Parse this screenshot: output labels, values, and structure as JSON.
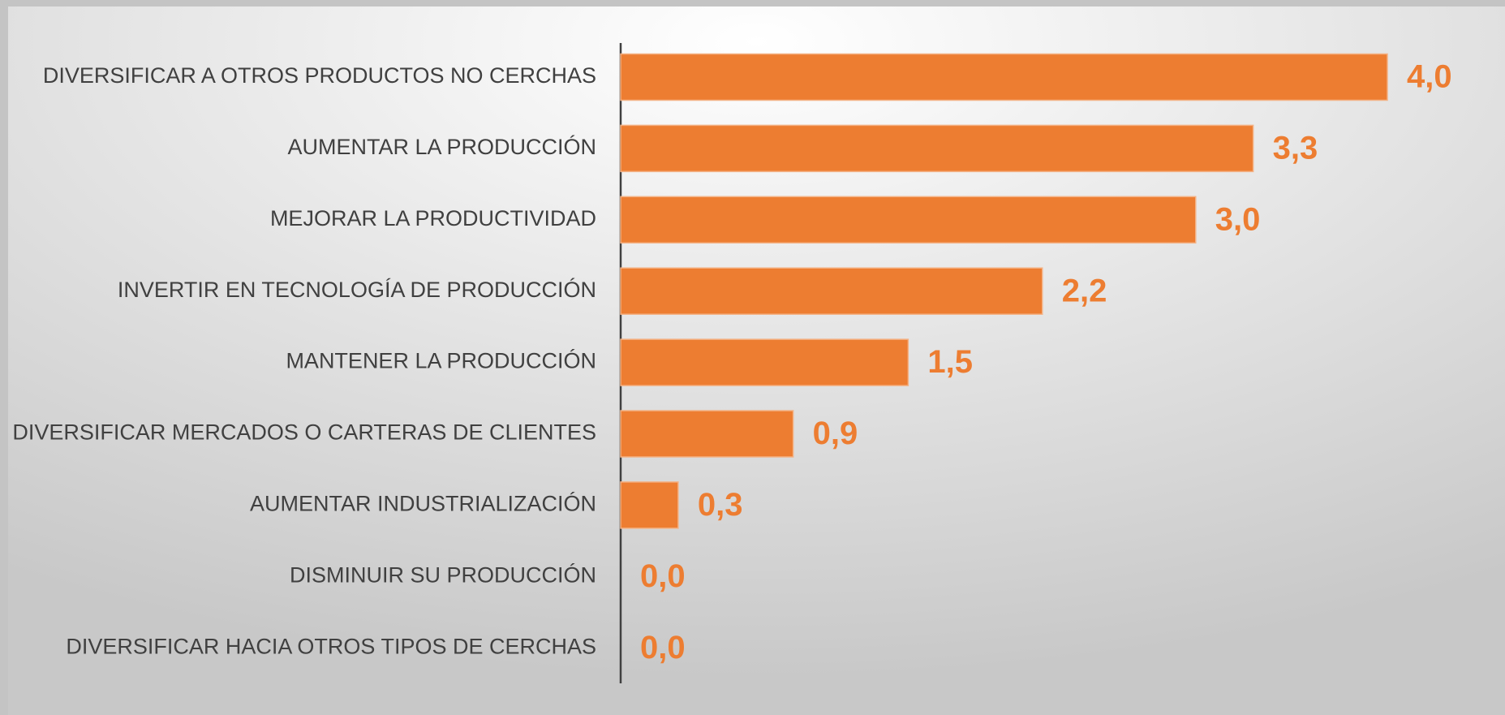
{
  "chart_data": {
    "type": "barh",
    "categories": [
      "DIVERSIFICAR A OTROS PRODUCTOS NO CERCHAS",
      "AUMENTAR LA PRODUCCIÓN",
      "MEJORAR LA PRODUCTIVIDAD",
      "INVERTIR EN TECNOLOGÍA DE PRODUCCIÓN",
      "MANTENER LA PRODUCCIÓN",
      "DIVERSIFICAR MERCADOS O CARTERAS DE CLIENTES",
      "AUMENTAR INDUSTRIALIZACIÓN",
      "DISMINUIR SU PRODUCCIÓN",
      "DIVERSIFICAR HACIA OTROS TIPOS DE CERCHAS"
    ],
    "values": [
      4.0,
      3.3,
      3.0,
      2.2,
      1.5,
      0.9,
      0.3,
      0.0,
      0.0
    ],
    "value_labels": [
      "4,0",
      "3,3",
      "3,0",
      "2,2",
      "1,5",
      "0,9",
      "0,3",
      "0,0",
      "0,0"
    ],
    "color": "#ed7d31"
  }
}
